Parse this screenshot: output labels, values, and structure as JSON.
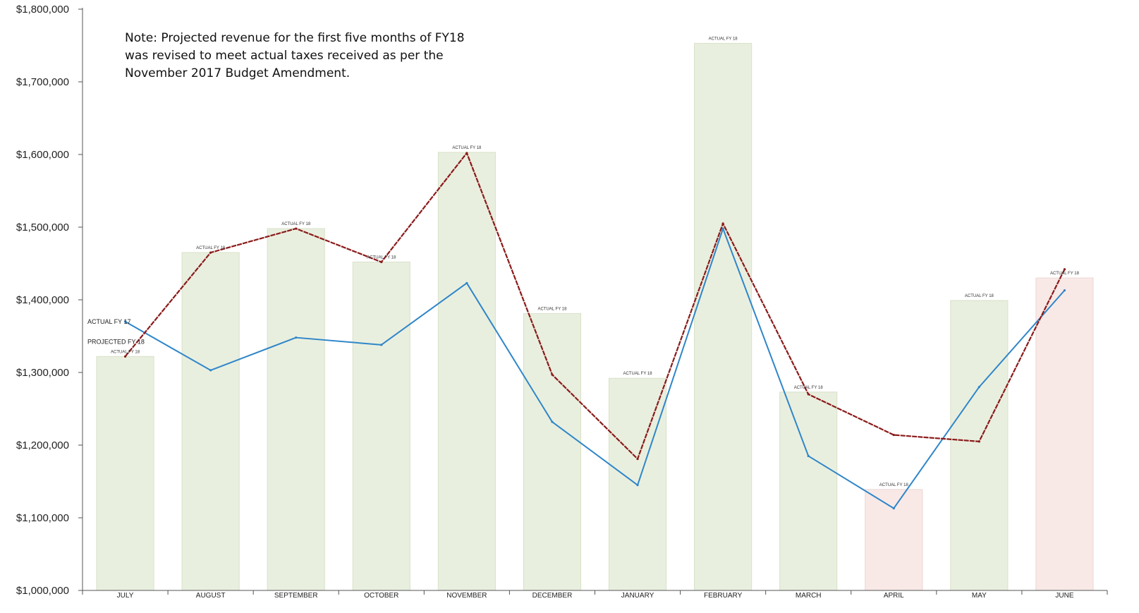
{
  "note": {
    "lines": [
      "Note: Projected revenue for the first five months of FY18",
      "was revised to meet actual taxes received as per the",
      "November 2017 Budget Amendment."
    ]
  },
  "chart_data": {
    "type": "bar",
    "categories": [
      "JULY",
      "AUGUST",
      "SEPTEMBER",
      "OCTOBER",
      "NOVEMBER",
      "DECEMBER",
      "JANUARY",
      "FEBRUARY",
      "MARCH",
      "APRIL",
      "MAY",
      "JUNE"
    ],
    "ylim": [
      1000000,
      1800000
    ],
    "yticks": [
      1000000,
      1100000,
      1200000,
      1300000,
      1400000,
      1500000,
      1600000,
      1700000,
      1800000
    ],
    "ytick_labels": [
      "$1,000,000",
      "$1,100,000",
      "$1,200,000",
      "$1,300,000",
      "$1,400,000",
      "$1,500,000",
      "$1,600,000",
      "$1,700,000",
      "$1,800,000"
    ],
    "colors": {
      "bar_above": "#e9efdf",
      "bar_above_border": "#d8e1c8",
      "bar_below": "#f8e9e7",
      "bar_below_border": "#ecd6d3",
      "actual_fy17": "#2f86c9",
      "projected_fy18": "#8b1a1a",
      "axis": "#555555"
    },
    "bars": {
      "label": "ACTUAL FY 18",
      "values": [
        1322000,
        1465000,
        1498000,
        1452000,
        1603000,
        1381000,
        1292000,
        1753000,
        1273000,
        1139000,
        1399000,
        1430000
      ],
      "below_projection": [
        false,
        false,
        false,
        false,
        false,
        false,
        false,
        false,
        false,
        true,
        false,
        true
      ]
    },
    "series": [
      {
        "name": "ACTUAL FY 17",
        "type": "line",
        "values": [
          1370000,
          1303000,
          1348000,
          1338000,
          1423000,
          1232000,
          1145000,
          1498000,
          1185000,
          1113000,
          1280000,
          1413000
        ]
      },
      {
        "name": "PROJECTED FY 18",
        "type": "line",
        "values": [
          1322000,
          1465000,
          1498000,
          1452000,
          1602000,
          1297000,
          1181000,
          1505000,
          1270000,
          1214000,
          1205000,
          1442000
        ]
      }
    ]
  }
}
